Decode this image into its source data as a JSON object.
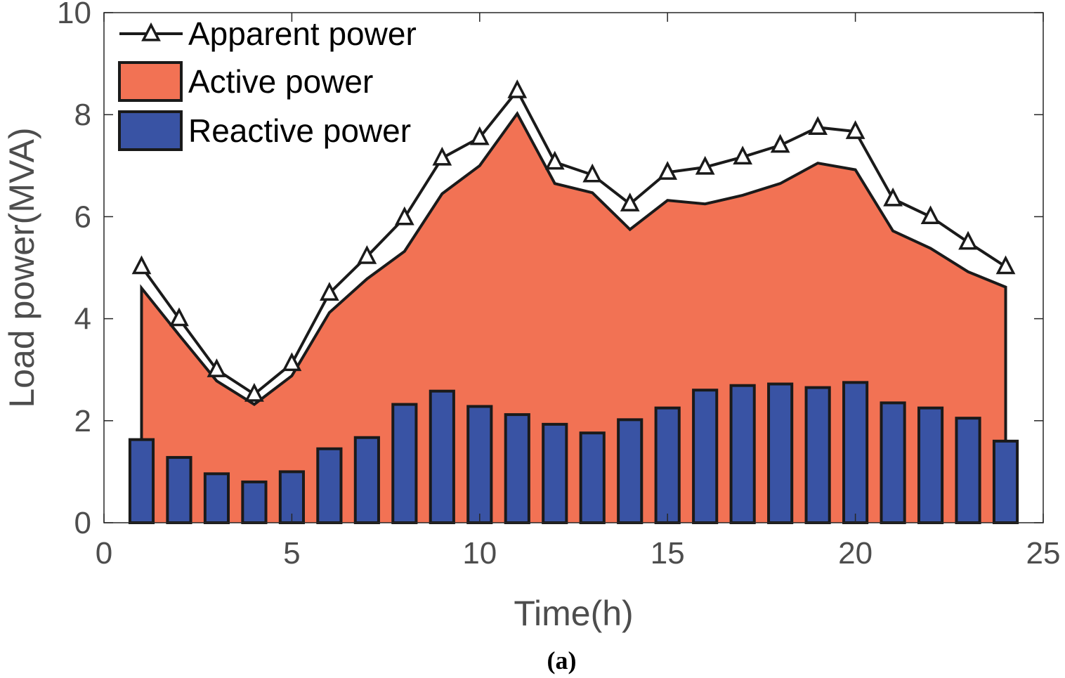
{
  "chart_data": {
    "type": "bar",
    "xlabel": "Time(h)",
    "ylabel": "Load power(MVA)",
    "xlim": [
      0,
      25
    ],
    "ylim": [
      0,
      10
    ],
    "xticks": [
      0,
      5,
      10,
      15,
      20,
      25
    ],
    "yticks": [
      0,
      2,
      4,
      6,
      8,
      10
    ],
    "caption": "(a)",
    "x": [
      1,
      2,
      3,
      4,
      5,
      6,
      7,
      8,
      9,
      10,
      11,
      12,
      13,
      14,
      15,
      16,
      17,
      18,
      19,
      20,
      21,
      22,
      23,
      24
    ],
    "series": [
      {
        "name": "Apparent power",
        "kind": "line",
        "marker": "triangle",
        "color": "#1a1a1a",
        "values": [
          5.02,
          4.0,
          3.0,
          2.52,
          3.12,
          4.5,
          5.22,
          5.98,
          7.15,
          7.55,
          8.47,
          7.07,
          6.82,
          6.25,
          6.87,
          6.97,
          7.17,
          7.4,
          7.75,
          7.67,
          6.35,
          6.0,
          5.5,
          5.02
        ]
      },
      {
        "name": "Active power",
        "kind": "area",
        "color": "#f27254",
        "values": [
          4.6,
          3.68,
          2.78,
          2.32,
          2.88,
          4.12,
          4.78,
          5.32,
          6.45,
          7.0,
          8.02,
          6.65,
          6.47,
          5.75,
          6.32,
          6.25,
          6.42,
          6.65,
          7.05,
          6.92,
          5.72,
          5.38,
          4.92,
          4.62
        ]
      },
      {
        "name": "Reactive power",
        "kind": "bar",
        "color": "#3953a4",
        "values": [
          1.63,
          1.28,
          0.96,
          0.8,
          1.0,
          1.45,
          1.67,
          2.32,
          2.58,
          2.28,
          2.12,
          1.93,
          1.76,
          2.02,
          2.25,
          2.6,
          2.69,
          2.72,
          2.65,
          2.75,
          2.35,
          2.25,
          2.05,
          1.6
        ]
      }
    ],
    "legend": {
      "placement": "top-left",
      "entries": [
        "Apparent power",
        "Active power",
        "Reactive power"
      ]
    }
  },
  "colors": {
    "axis": "#262626",
    "tick_text": "#4d4d4d",
    "edge": "#1a1a1a"
  }
}
